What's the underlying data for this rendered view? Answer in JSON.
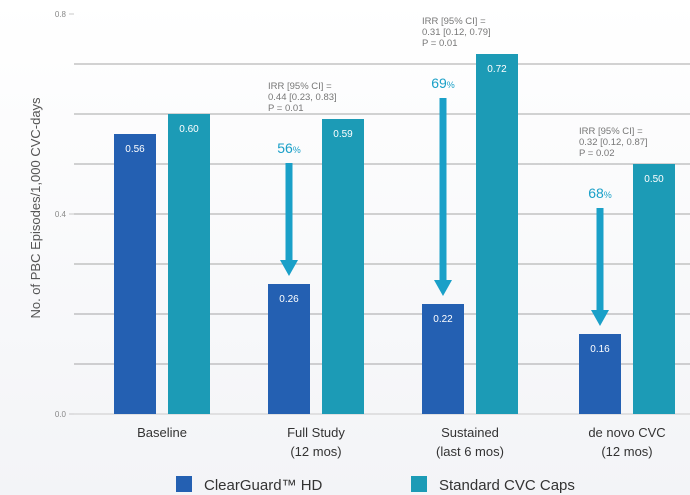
{
  "chart_data": {
    "type": "bar",
    "ylabel": "No. of PBC Episodes/1,000 CVC-days",
    "ylim": [
      0,
      0.8
    ],
    "yticks": [
      "0.0",
      "0.4",
      "0.8"
    ],
    "grid": true,
    "legend_position": "bottom",
    "categories": [
      {
        "line1": "Baseline",
        "line2": ""
      },
      {
        "line1": "Full Study",
        "line2": "(12 mos)"
      },
      {
        "line1": "Sustained",
        "line2": "(last 6 mos)"
      },
      {
        "line1": "de novo CVC",
        "line2": "(12 mos)"
      }
    ],
    "series": [
      {
        "name": "ClearGuard™ HD",
        "color": "#2460b2",
        "values": [
          0.56,
          0.26,
          0.22,
          0.16
        ],
        "labels": [
          "0.56",
          "0.26",
          "0.22",
          "0.16"
        ]
      },
      {
        "name": "Standard CVC Caps",
        "color": "#1c9bb6",
        "values": [
          0.6,
          0.59,
          0.72,
          0.5
        ],
        "labels": [
          "0.60",
          "0.59",
          "0.72",
          "0.50"
        ]
      }
    ],
    "annotations": [
      {
        "category": 1,
        "irr": [
          "IRR [95% CI] =",
          "0.44 [0.23, 0.83]",
          "P = 0.01"
        ],
        "reduction": "56",
        "pct_sign": "%"
      },
      {
        "category": 2,
        "irr": [
          "IRR [95% CI] =",
          "0.31 [0.12, 0.79]",
          "P = 0.01"
        ],
        "reduction": "69",
        "pct_sign": "%"
      },
      {
        "category": 3,
        "irr": [
          "IRR [95% CI] =",
          "0.32 [0.12, 0.87]",
          "P = 0.02"
        ],
        "reduction": "68",
        "pct_sign": "%"
      }
    ],
    "arrow_color": "#1aa0c8"
  }
}
